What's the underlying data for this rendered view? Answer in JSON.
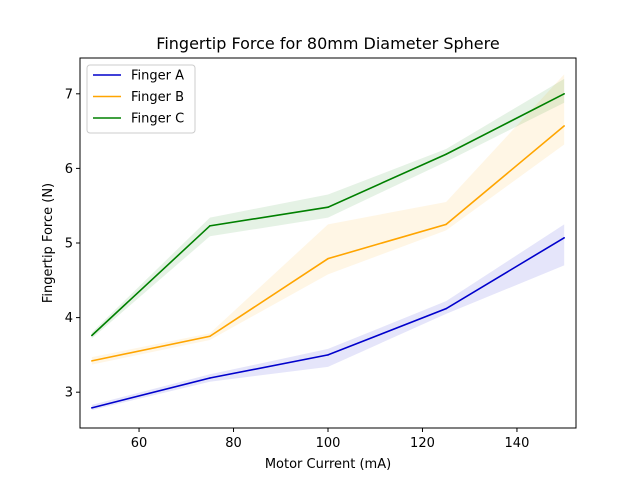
{
  "chart_data": {
    "type": "line",
    "title": "Fingertip Force for 80mm Diameter Sphere",
    "xlabel": "Motor Current (mA)",
    "ylabel": "Fingertip Force (N)",
    "x": [
      50,
      75,
      100,
      125,
      150
    ],
    "xlim": [
      47.5,
      152.5
    ],
    "ylim": [
      2.52,
      7.48
    ],
    "xticks": [
      60,
      80,
      100,
      120,
      140
    ],
    "yticks": [
      3,
      4,
      5,
      6,
      7
    ],
    "grid": false,
    "legend_position": "top-left",
    "series": [
      {
        "name": "Finger A",
        "color": "#0000cc",
        "values": [
          2.79,
          3.19,
          3.5,
          4.12,
          5.07
        ],
        "lower": [
          2.76,
          3.14,
          3.34,
          4.05,
          4.7
        ],
        "upper": [
          2.83,
          3.24,
          3.58,
          4.22,
          5.25
        ]
      },
      {
        "name": "Finger B",
        "color": "#ffa500",
        "values": [
          3.42,
          3.75,
          4.79,
          5.25,
          6.57
        ],
        "lower": [
          3.37,
          3.7,
          4.58,
          5.17,
          6.32
        ],
        "upper": [
          3.47,
          3.79,
          5.25,
          5.55,
          7.26
        ]
      },
      {
        "name": "Finger C",
        "color": "#008000",
        "values": [
          3.76,
          5.23,
          5.48,
          6.19,
          7.0
        ],
        "lower": [
          3.72,
          5.09,
          5.34,
          6.09,
          6.88
        ],
        "upper": [
          3.8,
          5.34,
          5.65,
          6.26,
          7.2
        ]
      }
    ]
  }
}
